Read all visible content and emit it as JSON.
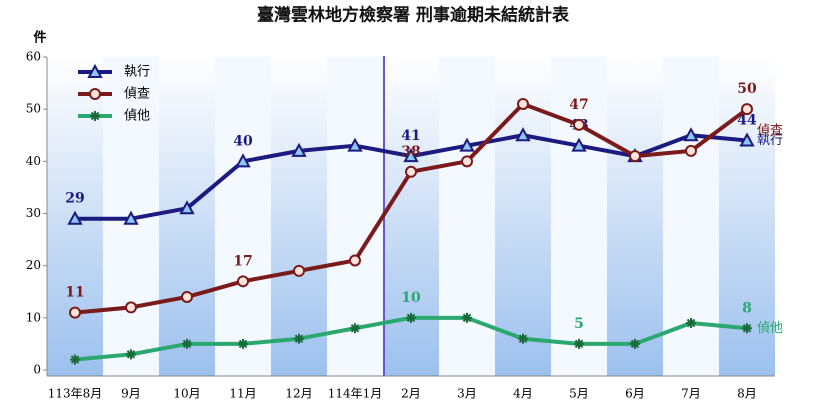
{
  "chart_data": {
    "type": "line",
    "title": "臺灣雲林地方檢察署  刑事逾期未結統計表",
    "y_label": "件",
    "categories": [
      "113年8月",
      "9月",
      "10月",
      "11月",
      "12月",
      "114年1月",
      "2月",
      "3月",
      "4月",
      "5月",
      "6月",
      "7月",
      "8月"
    ],
    "series": [
      {
        "name": "執行",
        "color": "#1a1a80",
        "marker": "triangle",
        "values": [
          29,
          29,
          31,
          40,
          42,
          43,
          41,
          43,
          45,
          43,
          41,
          45,
          44
        ],
        "value_labels": [
          "29",
          null,
          null,
          "40",
          null,
          null,
          "41",
          null,
          null,
          "43",
          null,
          null,
          "44"
        ]
      },
      {
        "name": "偵查",
        "color": "#7a1a1a",
        "marker": "circle",
        "values": [
          11,
          12,
          14,
          17,
          19,
          21,
          38,
          40,
          51,
          47,
          41,
          42,
          50
        ],
        "value_labels": [
          "11",
          null,
          null,
          "17",
          null,
          null,
          "38",
          null,
          null,
          "47",
          null,
          null,
          "50"
        ]
      },
      {
        "name": "偵他",
        "color": "#2aa870",
        "marker": "asterisk",
        "values": [
          2,
          3,
          5,
          5,
          6,
          8,
          10,
          10,
          6,
          5,
          5,
          9,
          8
        ],
        "value_labels": [
          null,
          null,
          null,
          null,
          null,
          null,
          "10",
          null,
          null,
          "5",
          null,
          null,
          "8"
        ]
      }
    ],
    "ylim": [
      0,
      60
    ],
    "yticks": [
      0,
      10,
      20,
      30,
      40,
      50,
      60
    ],
    "legend": "top-left"
  }
}
